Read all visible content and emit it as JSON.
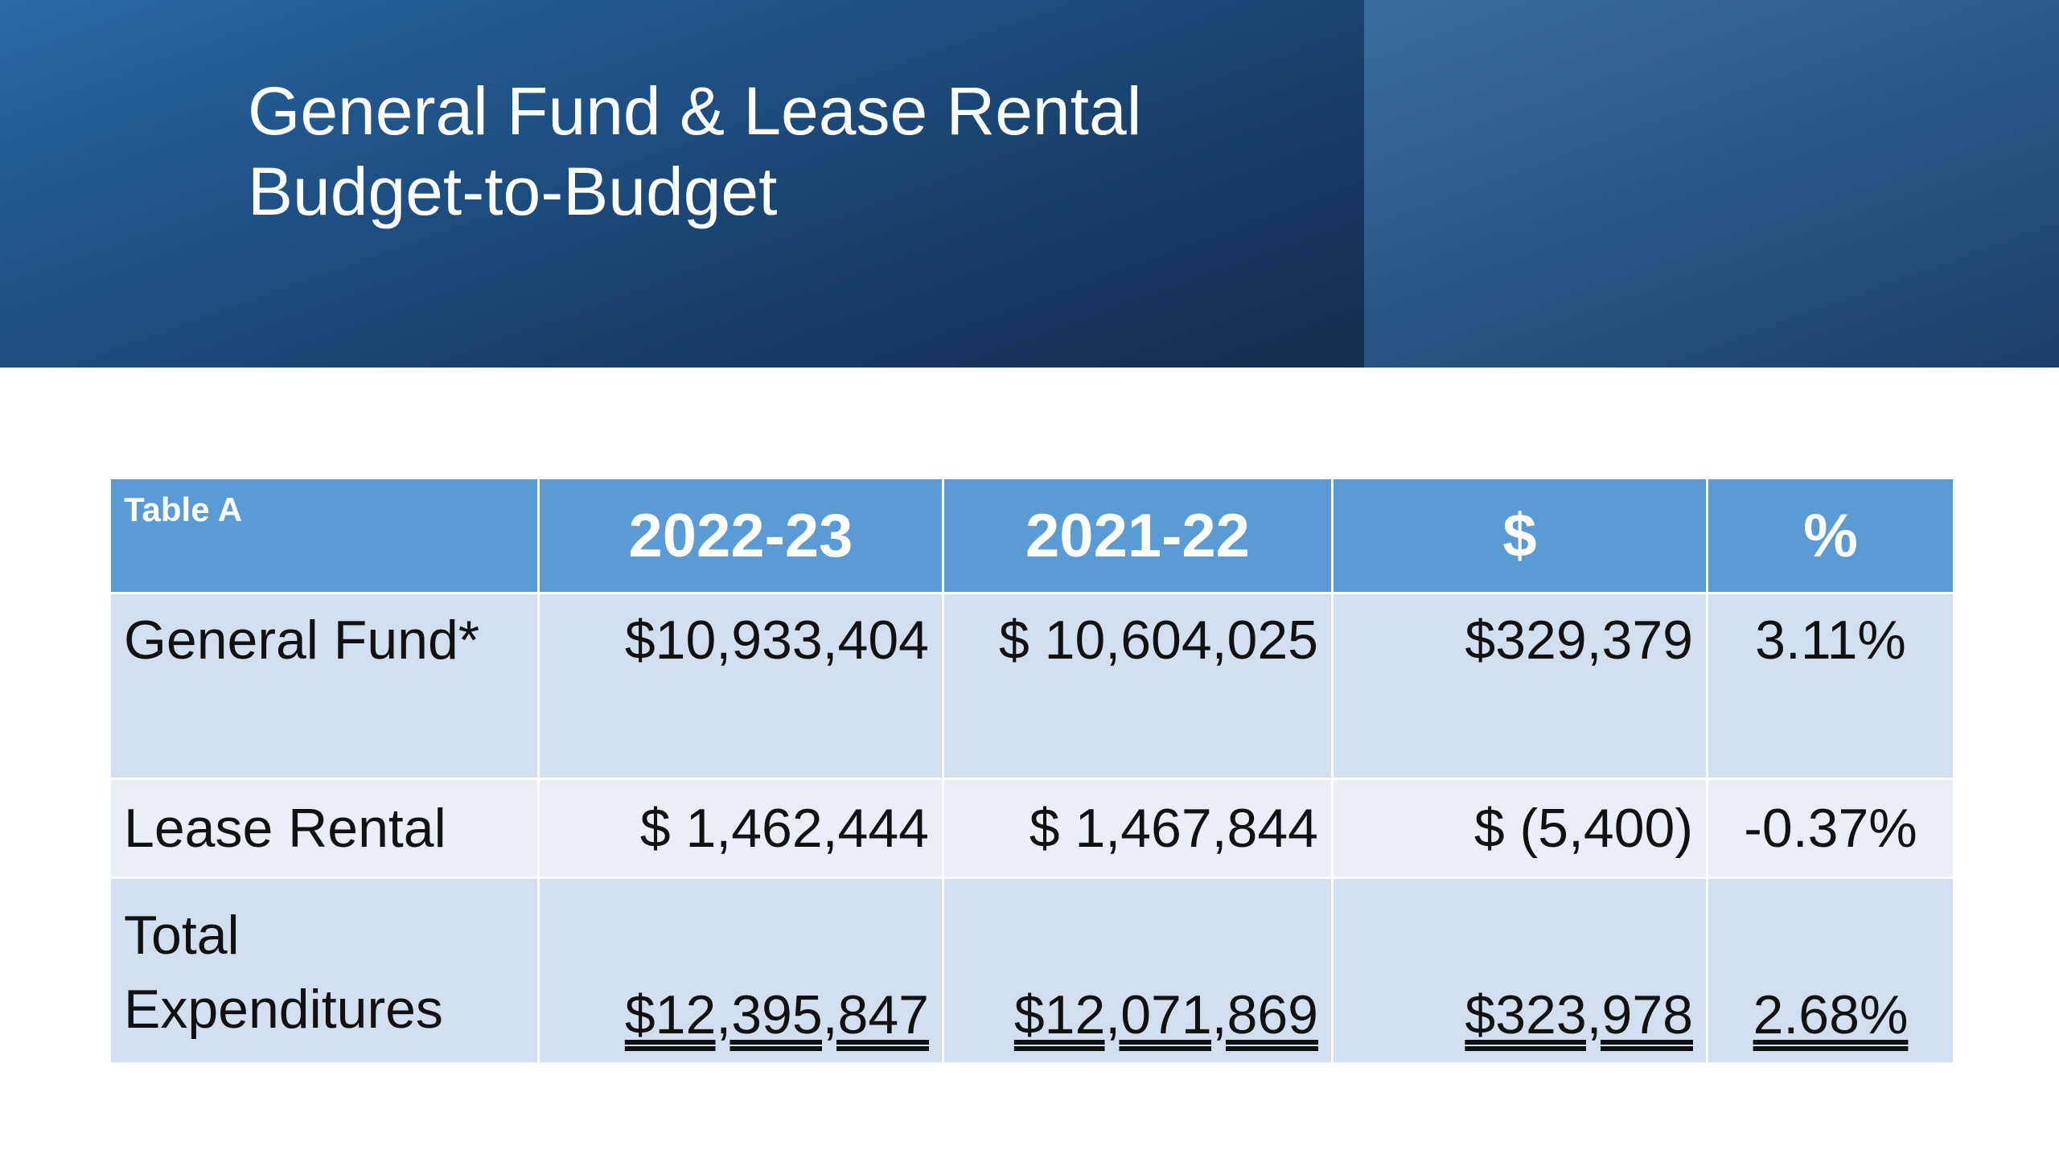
{
  "title": {
    "line1": "General Fund & Lease Rental",
    "line2": "Budget-to-Budget"
  },
  "colors": {
    "header_band": "#1f4e80",
    "table_header": "#5b9bd5",
    "row_dark": "#d2dfef",
    "row_light": "#e9eef7"
  },
  "table": {
    "corner_label": "Table A",
    "headers": [
      "2022-23",
      "2021-22",
      "$",
      "%"
    ],
    "rows": [
      {
        "label": "General Fund*",
        "values": [
          "$10,933,404",
          "$ 10,604,025",
          "$329,379",
          "3.11%"
        ]
      },
      {
        "label": "Lease Rental",
        "values": [
          "$ 1,462,444",
          "$ 1,467,844",
          "$ (5,400)",
          "-0.37%"
        ]
      },
      {
        "label_line1": "Total",
        "label_line2": "Expenditures",
        "values": [
          "$12,395,847",
          "$12,071,869",
          "$323,978",
          "2.68%"
        ]
      }
    ]
  }
}
